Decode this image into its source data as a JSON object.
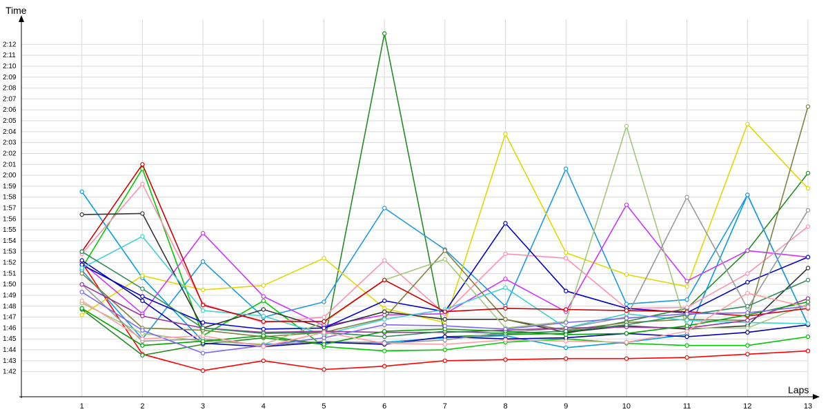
{
  "chart_data": {
    "type": "line",
    "xlabel": "Laps",
    "ylabel": "Time",
    "x": [
      1,
      2,
      3,
      4,
      5,
      6,
      7,
      8,
      9,
      10,
      11,
      12,
      13
    ],
    "x_tick_labels": [
      "1",
      "2",
      "3",
      "4",
      "5",
      "6",
      "7",
      "8",
      "9",
      "10",
      "11",
      "12",
      "13"
    ],
    "y_tick_values": [
      102,
      103,
      104,
      105,
      106,
      107,
      108,
      109,
      110,
      111,
      112,
      113,
      114,
      115,
      116,
      117,
      118,
      119,
      120,
      121,
      122,
      123,
      124,
      125,
      126,
      127,
      128,
      129,
      130,
      131,
      132
    ],
    "y_tick_labels": [
      "1:42",
      "1:43",
      "1:44",
      "1:45",
      "1:46",
      "1:47",
      "1:48",
      "1:49",
      "1:50",
      "1:51",
      "1:52",
      "1:53",
      "1:54",
      "1:55",
      "1:56",
      "1:57",
      "1:58",
      "1:59",
      "2:00",
      "2:01",
      "2:02",
      "2:03",
      "2:04",
      "2:05",
      "2:06",
      "2:07",
      "2:08",
      "2:09",
      "2:10",
      "2:11",
      "2:12"
    ],
    "ylim": [
      99.7,
      134.3
    ],
    "xlim": [
      0,
      13
    ],
    "grid": true,
    "series": [
      {
        "color": "#ff0000",
        "values": [
          112.0,
          103.6,
          102.1,
          103.0,
          102.2,
          102.5,
          103.0,
          103.1,
          103.2,
          103.2,
          103.3,
          103.6,
          103.9
        ]
      },
      {
        "color": "#00c800",
        "values": [
          111.5,
          120.6,
          105.3,
          108.5,
          104.3,
          103.9,
          104.0,
          104.7,
          105.0,
          104.6,
          104.4,
          104.4,
          105.2
        ]
      },
      {
        "color": "#228b22",
        "values": [
          107.7,
          103.5,
          104.5,
          105.1,
          104.5,
          133.0,
          105.2,
          105.4,
          105.5,
          106.6,
          107.8,
          113.1,
          120.2
        ]
      },
      {
        "color": "#009ee0",
        "values": [
          118.5,
          110.6,
          104.8,
          104.5,
          104.7,
          104.7,
          105.1,
          105.3,
          104.2,
          104.7,
          105.4,
          118.2,
          106.3
        ]
      },
      {
        "color": "#1a9ae0",
        "values": [
          111.3,
          105.0,
          112.1,
          107.0,
          108.4,
          117.0,
          113.2,
          108.0,
          120.6,
          108.2,
          108.6,
          118.2,
          106.3
        ]
      },
      {
        "color": "#e0d800",
        "values": [
          107.2,
          110.8,
          109.5,
          109.9,
          112.4,
          107.8,
          106.5,
          123.8,
          112.9,
          110.9,
          109.8,
          124.7,
          118.8
        ]
      },
      {
        "color": "#cc33ff",
        "values": [
          112.0,
          107.3,
          114.7,
          108.9,
          106.2,
          107.2,
          107.3,
          110.5,
          107.5,
          117.3,
          110.3,
          113.1,
          112.5
        ]
      },
      {
        "color": "#ff8fb0",
        "values": [
          112.8,
          119.2,
          108.2,
          106.5,
          107.0,
          112.2,
          107.3,
          112.8,
          112.4,
          107.8,
          107.9,
          111.0,
          115.3
        ]
      },
      {
        "color": "#333333",
        "values": [
          116.4,
          116.5,
          106.0,
          107.7,
          106.0,
          107.5,
          106.8,
          106.8,
          105.6,
          106.2,
          105.9,
          106.2,
          111.5
        ]
      },
      {
        "color": "#0000cc",
        "values": [
          111.8,
          108.9,
          106.5,
          105.9,
          106.0,
          108.5,
          107.5,
          115.6,
          109.4,
          107.8,
          107.4,
          110.2,
          112.5
        ]
      },
      {
        "color": "#0000aa",
        "values": [
          112.2,
          108.5,
          104.6,
          104.3,
          104.7,
          104.5,
          105.2,
          105.0,
          105.1,
          105.5,
          105.2,
          105.6,
          106.3
        ]
      },
      {
        "color": "#808040",
        "values": [
          111.0,
          106.0,
          105.8,
          105.2,
          105.6,
          106.9,
          113.1,
          106.8,
          105.8,
          106.5,
          106.8,
          106.7,
          126.3
        ]
      },
      {
        "color": "#a0c878",
        "values": [
          108.3,
          105.5,
          104.8,
          104.5,
          106.5,
          110.4,
          112.3,
          106.0,
          106.6,
          124.5,
          106.0,
          106.0,
          108.2
        ]
      },
      {
        "color": "#999999",
        "values": [
          110.0,
          104.8,
          105.0,
          104.4,
          104.8,
          104.6,
          104.9,
          105.6,
          106.0,
          107.0,
          118.0,
          107.8,
          116.8
        ]
      },
      {
        "color": "#40d0d0",
        "values": [
          111.5,
          114.4,
          107.6,
          107.1,
          105.4,
          106.8,
          107.7,
          109.7,
          106.0,
          107.3,
          106.7,
          106.5,
          106.4
        ]
      },
      {
        "color": "#cc0000",
        "values": [
          113.0,
          121.0,
          108.1,
          106.6,
          106.6,
          110.4,
          107.5,
          107.8,
          107.7,
          107.6,
          107.5,
          107.1,
          107.8
        ]
      },
      {
        "color": "#993399",
        "values": [
          110.0,
          107.1,
          106.0,
          105.6,
          105.7,
          105.6,
          105.6,
          105.8,
          106.0,
          106.1,
          106.0,
          106.7,
          108.7
        ]
      },
      {
        "color": "#2e8b57",
        "values": [
          113.0,
          109.6,
          106.0,
          105.5,
          105.6,
          105.2,
          105.7,
          105.5,
          105.7,
          106.3,
          107.2,
          108.0,
          110.4
        ]
      },
      {
        "color": "#00a000",
        "values": [
          107.8,
          104.4,
          104.8,
          105.3,
          104.5,
          105.7,
          105.9,
          105.7,
          105.4,
          105.5,
          106.2,
          107.2,
          108.4
        ]
      },
      {
        "color": "#7b68ee",
        "values": [
          109.3,
          105.8,
          103.7,
          104.4,
          105.1,
          106.3,
          106.2,
          105.9,
          106.5,
          106.9,
          107.3,
          107.4,
          108.0
        ]
      },
      {
        "color": "#ffa0a0",
        "values": [
          108.5,
          105.0,
          105.3,
          104.3,
          105.6,
          104.6,
          104.5,
          104.9,
          104.8,
          104.7,
          105.7,
          109.2,
          107.9
        ]
      }
    ]
  }
}
